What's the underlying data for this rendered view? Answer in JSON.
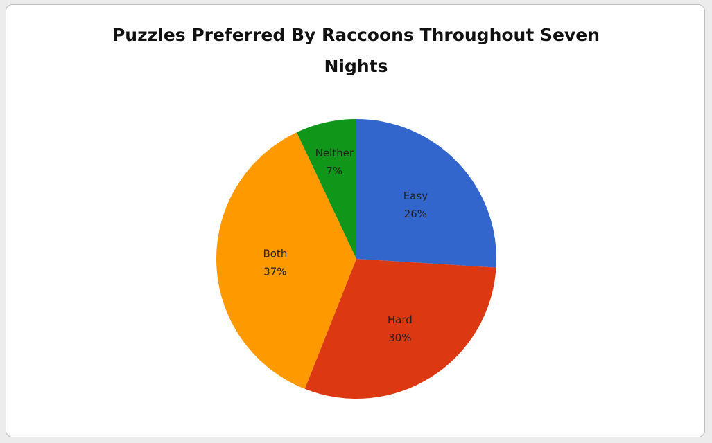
{
  "chart_data": {
    "type": "pie",
    "title_lines": [
      "Puzzles Preferred By Raccoons Throughout  Seven",
      "Nights"
    ],
    "slices": [
      {
        "label": "Easy",
        "value": 26,
        "value_label": "26%",
        "color": "#3366cc"
      },
      {
        "label": "Hard",
        "value": 30,
        "value_label": "30%",
        "color": "#dc3912"
      },
      {
        "label": "Both",
        "value": 37,
        "value_label": "37%",
        "color": "#ff9900"
      },
      {
        "label": "Neither",
        "value": 7,
        "value_label": "7%",
        "color": "#109618"
      }
    ],
    "start_angle": "top",
    "direction": "clockwise",
    "legend": "none"
  }
}
